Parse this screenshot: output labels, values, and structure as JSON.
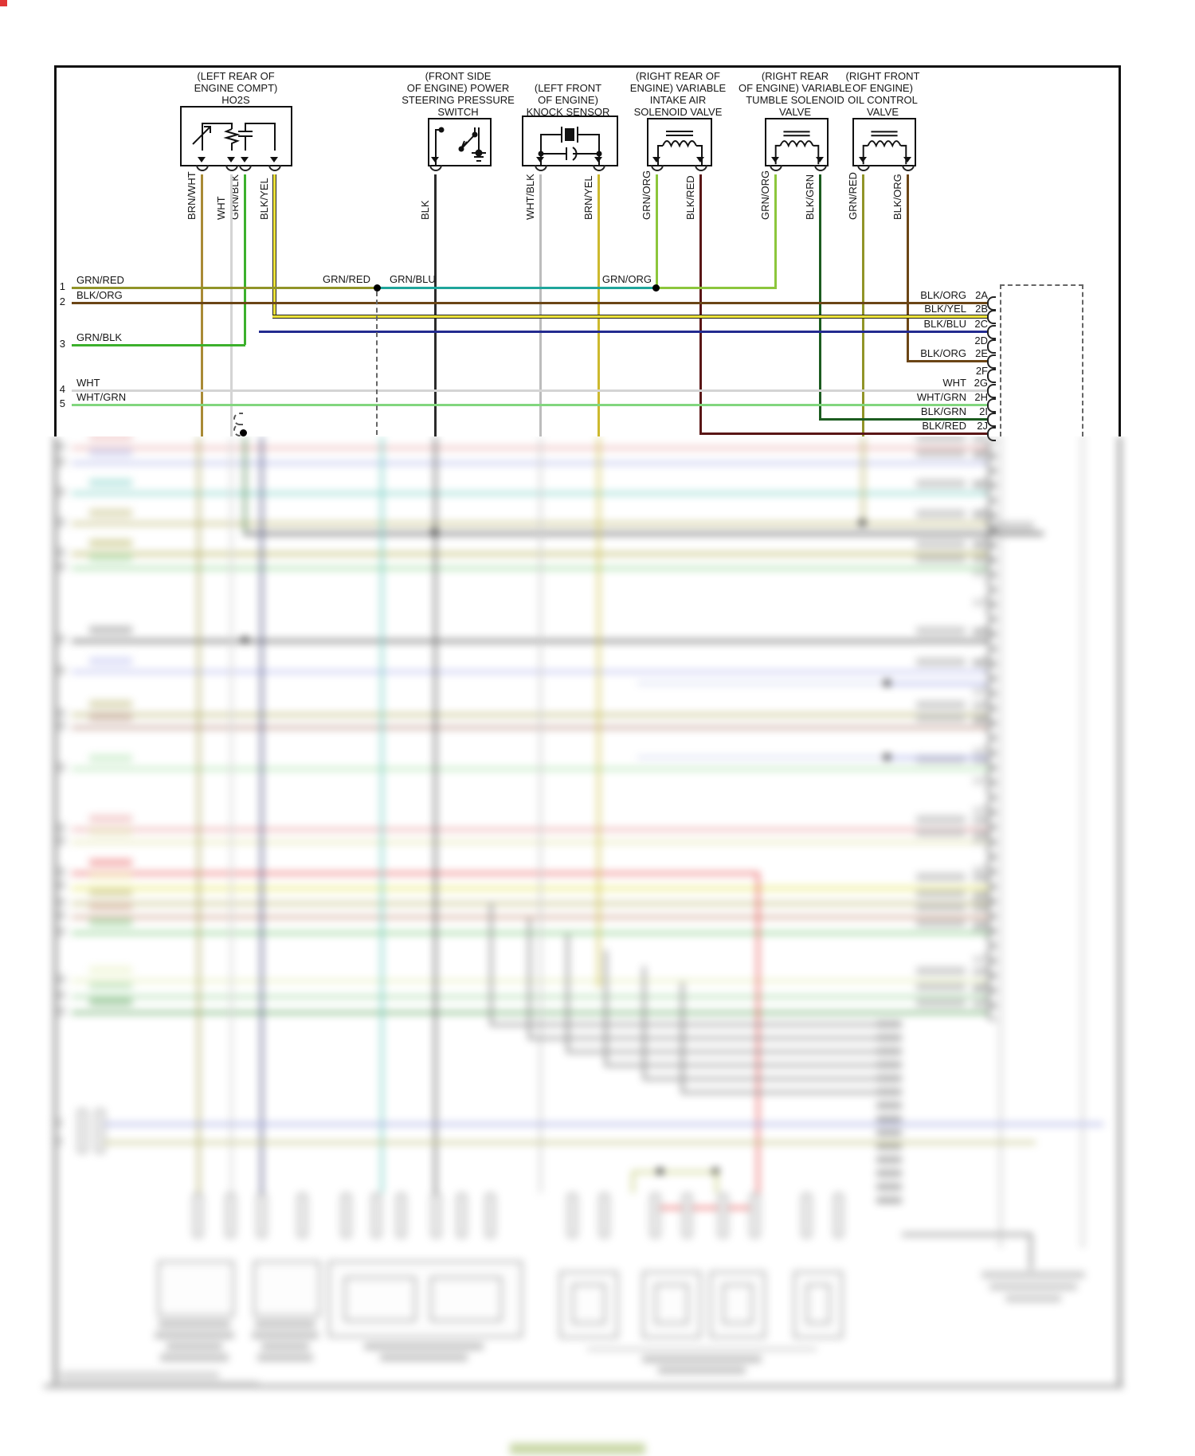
{
  "diagram": {
    "components": [
      {
        "name": "ho2s",
        "lines": [
          "(LEFT REAR OF",
          "ENGINE COMPT)",
          "HO2S"
        ],
        "wires": [
          "BRN/WHT",
          "WHT",
          "GRN/BLK",
          "BLK/YEL"
        ]
      },
      {
        "name": "power-steering-pressure-switch",
        "lines": [
          "(FRONT SIDE",
          "OF ENGINE) POWER",
          "STEERING PRESSURE",
          "SWITCH"
        ],
        "wires": [
          "BLK"
        ]
      },
      {
        "name": "knock-sensor",
        "lines": [
          "(LEFT FRONT",
          "OF ENGINE)",
          "KNOCK SENSOR"
        ],
        "wires": [
          "WHT/BLK",
          "BRN/YEL"
        ]
      },
      {
        "name": "variable-intake-air-solenoid-valve",
        "lines": [
          "(RIGHT REAR OF",
          "ENGINE) VARIABLE",
          "INTAKE AIR",
          "SOLENOID VALVE"
        ],
        "wires": [
          "GRN/ORG",
          "BLK/RED"
        ]
      },
      {
        "name": "variable-tumble-solenoid-valve",
        "lines": [
          "(RIGHT REAR",
          "OF ENGINE) VARIABLE",
          "TUMBLE SOLENOID",
          "VALVE"
        ],
        "wires": [
          "GRN/ORG",
          "BLK/GRN"
        ]
      },
      {
        "name": "oil-control-valve",
        "lines": [
          "(RIGHT FRONT",
          "OF ENGINE)",
          "OIL CONTROL",
          "VALVE"
        ],
        "wires": [
          "GRN/RED",
          "BLK/ORG"
        ]
      }
    ],
    "left_rows": [
      {
        "num": "1",
        "label": "GRN/RED"
      },
      {
        "num": "2",
        "label": "BLK/ORG"
      },
      {
        "num": "3",
        "label": "GRN/BLK"
      },
      {
        "num": "4",
        "label": "WHT"
      },
      {
        "num": "5",
        "label": "WHT/GRN"
      }
    ],
    "splice_labels": {
      "grn_red": "GRN/RED",
      "grn_blu": "GRN/BLU",
      "grn_org": "GRN/ORG"
    },
    "right_pins": [
      {
        "pin": "2A",
        "label": "BLK/ORG"
      },
      {
        "pin": "2B",
        "label": "BLK/YEL"
      },
      {
        "pin": "2C",
        "label": "BLK/BLU"
      },
      {
        "pin": "2D",
        "label": ""
      },
      {
        "pin": "2E",
        "label": "BLK/ORG"
      },
      {
        "pin": "2F",
        "label": ""
      },
      {
        "pin": "2G",
        "label": "WHT"
      },
      {
        "pin": "2H",
        "label": "WHT/GRN"
      },
      {
        "pin": "2I",
        "label": "BLK/GRN"
      },
      {
        "pin": "2J",
        "label": "BLK/RED"
      }
    ],
    "wire_colors": {
      "GRN/RED": "#919428",
      "GRN/BLU": "#1fa59b",
      "GRN/ORG": "#8cc63c",
      "GRN/BLK": "#3cb02c",
      "BLK/ORG": "#6b4516",
      "BLK/YEL": "#e8e100",
      "BLK/BLU": "#232a8f",
      "BLK/RED": "#5a1616",
      "BLK/GRN": "#1c5c20",
      "WHT": "#d4d4d4",
      "WHT/GRN": "#82d67e",
      "WHT/BLK": "#bcbcbc",
      "BRN/WHT": "#a98a35",
      "BRN/YEL": "#cdb92e",
      "BLK": "#2b2b2b"
    }
  }
}
